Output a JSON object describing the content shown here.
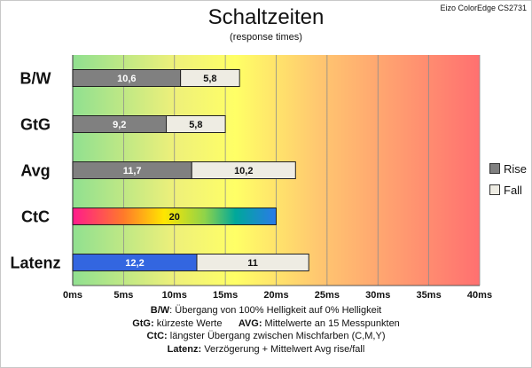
{
  "monitor": "Eizo ColorEdge CS2731",
  "colors": {
    "rise": "#808080",
    "fall": "#eeece3",
    "latenz_rise": "#3366e0",
    "border": "#222222"
  },
  "chart_data": {
    "type": "bar",
    "orientation": "horizontal",
    "stacked": true,
    "title": "Schaltzeiten",
    "subtitle": "(response times)",
    "categories": [
      "B/W",
      "GtG",
      "Avg",
      "CtC",
      "Latenz"
    ],
    "series": [
      {
        "name": "Rise",
        "values": [
          10.6,
          9.2,
          11.7,
          20,
          12.2
        ],
        "labels": [
          "10,6",
          "9,2",
          "11,7",
          "20",
          "12,2"
        ]
      },
      {
        "name": "Fall",
        "values": [
          5.8,
          5.8,
          10.2,
          0,
          11
        ],
        "labels": [
          "5,8",
          "5,8",
          "10,2",
          "",
          "11"
        ]
      }
    ],
    "x_ticks": [
      "0ms",
      "5ms",
      "10ms",
      "15ms",
      "20ms",
      "25ms",
      "30ms",
      "35ms",
      "40ms"
    ],
    "xlim": [
      0,
      40
    ],
    "grid": "vertical",
    "background": "gradient green-yellow-red",
    "legend_position": "right"
  },
  "notes": [
    {
      "key": "B/W",
      "text": ":  Übergang von 100% Helligkeit auf 0% Helligkeit"
    },
    {
      "key": "GtG:",
      "text": " kürzeste  Werte",
      "key2": "AVG:",
      "text2": " Mittelwerte  an 15 Messpunkten"
    },
    {
      "key": "CtC:",
      "text": " längster Übergang  zwischen Mischfarben  (C,M,Y)"
    },
    {
      "key": "Latenz:",
      "text": " Verzögerung  + Mittelwert  Avg rise/fall"
    }
  ]
}
